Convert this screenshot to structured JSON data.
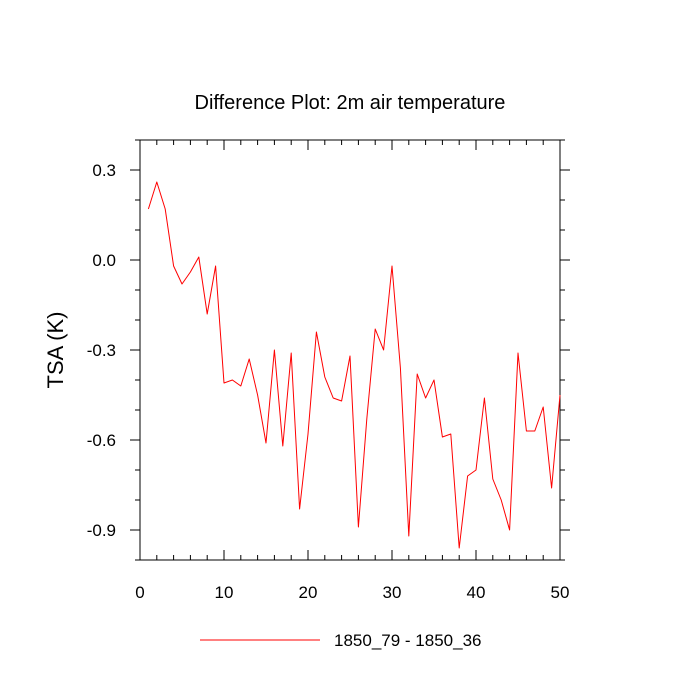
{
  "chart_data": {
    "type": "line",
    "title": "Difference Plot: 2m air temperature",
    "xlabel": "",
    "ylabel": "TSA  (K)",
    "xlim": [
      0,
      50
    ],
    "ylim": [
      -1.0,
      0.4
    ],
    "xticks": [
      0,
      10,
      20,
      30,
      40,
      50
    ],
    "yticks": [
      0.3,
      0.0,
      -0.3,
      -0.6,
      -0.9
    ],
    "xtick_labels": [
      "0",
      "10",
      "20",
      "30",
      "40",
      "50"
    ],
    "ytick_labels": [
      "0.3",
      "0.0",
      "-0.3",
      "-0.6",
      "-0.9"
    ],
    "grid": false,
    "legend_position": "bottom",
    "series": [
      {
        "name": "1850_79 - 1850_36",
        "color": "#ff0000",
        "x": [
          1,
          2,
          3,
          4,
          5,
          6,
          7,
          8,
          9,
          10,
          11,
          12,
          13,
          14,
          15,
          16,
          17,
          18,
          19,
          20,
          21,
          22,
          23,
          24,
          25,
          26,
          27,
          28,
          29,
          30,
          31,
          32,
          33,
          34,
          35,
          36,
          37,
          38,
          39,
          40,
          41,
          42,
          43,
          44,
          45,
          46,
          47,
          48,
          49,
          50
        ],
        "y": [
          0.17,
          0.26,
          0.17,
          -0.02,
          -0.08,
          -0.04,
          0.01,
          -0.18,
          -0.02,
          -0.41,
          -0.4,
          -0.42,
          -0.33,
          -0.45,
          -0.61,
          -0.3,
          -0.62,
          -0.31,
          -0.83,
          -0.58,
          -0.24,
          -0.39,
          -0.46,
          -0.47,
          -0.32,
          -0.89,
          -0.53,
          -0.23,
          -0.3,
          -0.02,
          -0.36,
          -0.92,
          -0.38,
          -0.46,
          -0.4,
          -0.59,
          -0.58,
          -0.96,
          -0.72,
          -0.7,
          -0.46,
          -0.73,
          -0.8,
          -0.9,
          -0.31,
          -0.57,
          -0.57,
          -0.49,
          -0.76,
          -0.45
        ]
      }
    ]
  }
}
